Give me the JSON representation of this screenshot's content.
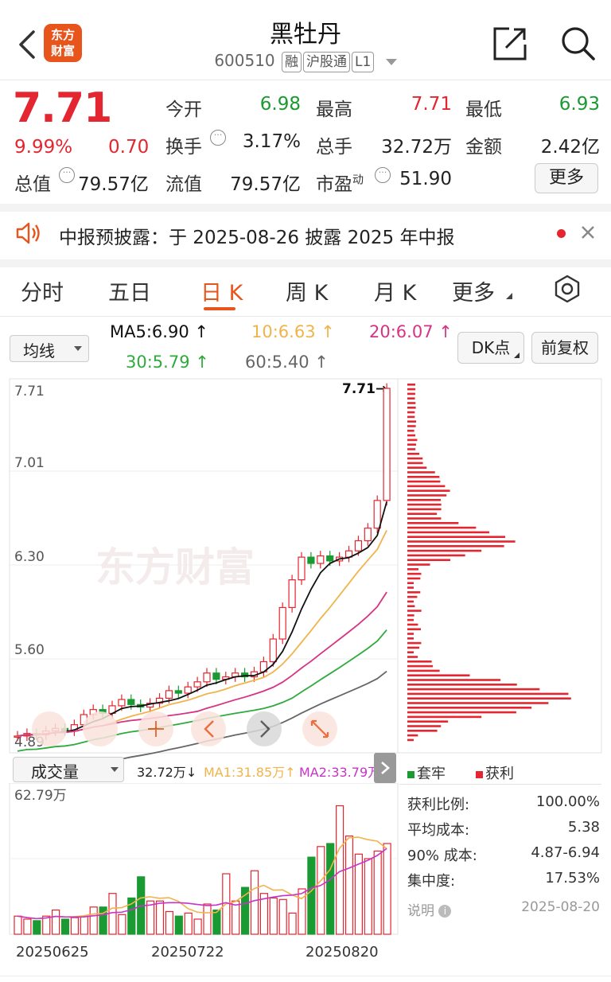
{
  "header": {
    "back_icon": "chevron-left-icon",
    "logo_text": "东方财富",
    "title": "黑牡丹",
    "code": "600510",
    "tags": [
      "融",
      "沪股通",
      "L1"
    ],
    "share_icon": "share-icon",
    "search_icon": "search-icon"
  },
  "quote": {
    "price": "7.71",
    "change_pct": "9.99%",
    "change": "0.70",
    "total_cap_label": "总值",
    "total_cap": "79.57亿",
    "open_label": "今开",
    "open": "6.98",
    "high_label": "最高",
    "high": "7.71",
    "low_label": "最低",
    "low": "6.93",
    "turnover_label": "换手",
    "turnover": "3.17%",
    "volume_label": "总手",
    "volume": "32.72万",
    "amount_label": "金额",
    "amount": "2.42亿",
    "float_cap_label": "流值",
    "float_cap": "79.57亿",
    "pe_label": "市盈",
    "pe_sup": "动",
    "pe": "51.90",
    "more_label": "更多"
  },
  "notice": {
    "text": "中报预披露：于 2025-08-26 披露 2025 年中报",
    "colors": {
      "icon": "#e8551c",
      "dot": "#e3262f"
    }
  },
  "tabs": {
    "items": [
      "分时",
      "五日",
      "日 K",
      "周 K",
      "月 K",
      "更多"
    ],
    "active": 2,
    "settings_icon": "gear-icon"
  },
  "ma": {
    "selector": "均线",
    "ma5": "MA5:6.90",
    "ma10": "10:6.63",
    "ma20": "20:6.07",
    "ma30": "30:5.79",
    "ma60": "60:5.40",
    "dk_label": "DK点",
    "fq_label": "前复权",
    "colors": {
      "ma5": "#111111",
      "ma10": "#f0b44a",
      "ma20": "#d63384",
      "ma30": "#2faa3c",
      "ma60": "#666666"
    }
  },
  "kchart": {
    "y_labels": [
      "7.71",
      "7.01",
      "6.30",
      "5.60"
    ],
    "bottom_label": "4.89",
    "last_label": "7.71→",
    "watermark": "东方财富"
  },
  "volume": {
    "selector": "成交量",
    "vol": "32.72万",
    "ma1": "MA1:31.85万",
    "ma2": "MA2:33.79万",
    "max_label": "62.79万",
    "dates": [
      "20250625",
      "20250722",
      "20250820"
    ],
    "colors": {
      "ma1": "#f0b44a",
      "ma2": "#c833c8"
    }
  },
  "chips": {
    "legend_trap": "套牢",
    "legend_profit": "获利",
    "stats": [
      {
        "label": "获利比例:",
        "value": "100.00%"
      },
      {
        "label": "平均成本:",
        "value": "5.38"
      },
      {
        "label": "90% 成本:",
        "value": "4.87-6.94"
      },
      {
        "label": "集中度:",
        "value": "17.53%"
      }
    ],
    "note_label": "说明",
    "date": "2025-08-20"
  },
  "colors": {
    "up": "#e3262f",
    "down": "#1a9a32",
    "accent": "#e8551c"
  }
}
